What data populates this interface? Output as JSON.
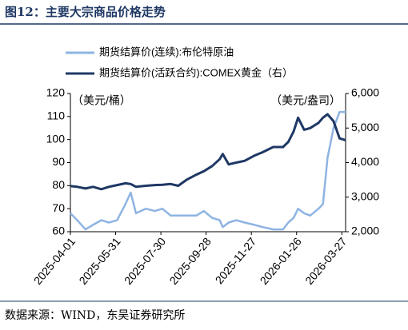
{
  "chart_data": {
    "type": "line",
    "title": "图12：主要大宗商品价格走势",
    "source": "数据来源：WIND，东吴证券研究所",
    "y_unit": "（美元/桶）",
    "y2_unit": "（美元/盎司）",
    "x": [
      "2025-04-01",
      "2025-04-10",
      "2025-04-21",
      "2025-05-01",
      "2025-05-12",
      "2025-05-22",
      "2025-06-02",
      "2025-06-13",
      "2025-06-20",
      "2025-06-27",
      "2025-07-10",
      "2025-07-22",
      "2025-08-01",
      "2025-08-12",
      "2025-08-22",
      "2025-09-02",
      "2025-09-15",
      "2025-09-25",
      "2025-10-06",
      "2025-10-16",
      "2025-10-20",
      "2025-10-28",
      "2025-11-07",
      "2025-11-18",
      "2025-12-01",
      "2025-12-12",
      "2025-12-26",
      "2026-01-08",
      "2026-01-15",
      "2026-01-22",
      "2026-01-28",
      "2026-02-05",
      "2026-02-13",
      "2026-02-24",
      "2026-03-02",
      "2026-03-08",
      "2026-03-16",
      "2026-03-24",
      "2026-04-01"
    ],
    "xticks": [
      "2025-04-01",
      "2025-05-31",
      "2025-07-30",
      "2025-09-28",
      "2025-11-27",
      "2026-01-26",
      "2026-03-27"
    ],
    "series": [
      {
        "name": "期货结算价(连续):布伦特原油",
        "color": "#8eb4e3",
        "values": [
          68,
          65,
          61,
          63,
          65,
          64,
          65,
          72,
          77,
          68,
          70,
          69,
          70,
          67,
          67,
          67,
          67,
          69,
          66,
          65,
          62,
          64,
          65,
          64,
          63,
          62,
          61,
          61,
          64,
          66,
          70,
          68,
          67,
          70,
          72,
          92,
          105,
          112,
          112
        ]
      },
      {
        "name": "期货结算价(活跃合约):COMEX黄金（右）",
        "color": "#1f3864",
        "axis": "y2",
        "values": [
          3320,
          3300,
          3250,
          3300,
          3230,
          3300,
          3350,
          3400,
          3380,
          3300,
          3330,
          3350,
          3360,
          3380,
          3330,
          3500,
          3650,
          3750,
          3900,
          4100,
          4250,
          3950,
          4000,
          4050,
          4200,
          4300,
          4450,
          4450,
          4600,
          4900,
          5300,
          4950,
          5000,
          5150,
          5300,
          5400,
          5200,
          4700,
          4650
        ]
      }
    ],
    "ylim": [
      60,
      120
    ],
    "yticks": [
      60,
      70,
      80,
      90,
      100,
      110,
      120
    ],
    "y2lim": [
      2000,
      6000
    ],
    "y2ticks": [
      {
        "value": 2000,
        "label": "2,000"
      },
      {
        "value": 3000,
        "label": "3,000"
      },
      {
        "value": 4000,
        "label": "4,000"
      },
      {
        "value": 5000,
        "label": "5,000"
      },
      {
        "value": 6000,
        "label": "6,000"
      }
    ]
  }
}
